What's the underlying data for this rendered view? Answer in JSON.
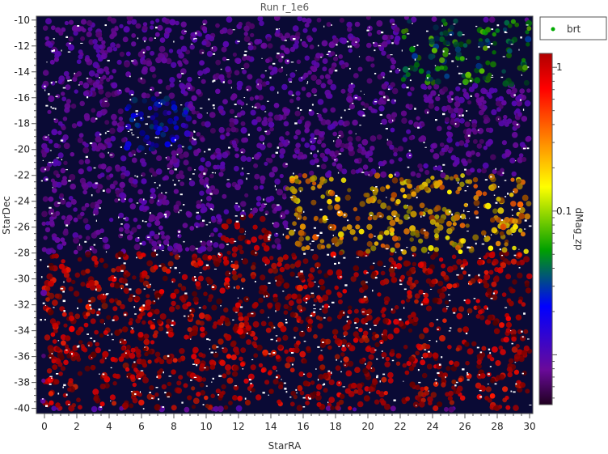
{
  "chart_data": {
    "type": "scatter",
    "title": "Run r_1e6",
    "xlabel": "StarRA",
    "ylabel": "StarDec",
    "xlim": [
      -0.5,
      30.2
    ],
    "ylim": [
      -40.4,
      -9.7
    ],
    "x_ticks": [
      "0",
      "2",
      "4",
      "6",
      "8",
      "10",
      "12",
      "14",
      "16",
      "18",
      "20",
      "22",
      "24",
      "26",
      "28",
      "30"
    ],
    "y_ticks": [
      "-10",
      "-12",
      "-14",
      "-16",
      "-18",
      "-20",
      "-22",
      "-24",
      "-26",
      "-28",
      "-30",
      "-32",
      "-34",
      "-36",
      "-38",
      "-40"
    ],
    "legend": {
      "label": "brt",
      "marker_color": "#00aa00",
      "placement": "top-right, outside plot"
    },
    "colorbar": {
      "label": "dMag_zp",
      "scale": "log",
      "range": [
        0.0045,
        1.25
      ],
      "tick_labels": [
        "1",
        "0.1"
      ],
      "tick_values": [
        1,
        0.1
      ],
      "colors": [
        "#200020",
        "#6a0a9a",
        "#0000ff",
        "#00a000",
        "#ffff00",
        "#ff8000",
        "#ff0000",
        "#b00000"
      ]
    },
    "background_color": "#0a0a35",
    "grid": false,
    "regions": [
      {
        "name": "red-orange band",
        "x_range": [
          0,
          30
        ],
        "y_range": [
          -40,
          -28
        ],
        "dMag_zp": 0.9
      },
      {
        "name": "olive band",
        "x_range": [
          15,
          30
        ],
        "y_range": [
          -28,
          -22
        ],
        "dMag_zp": 0.25
      },
      {
        "name": "green patch",
        "x_range": [
          22,
          30
        ],
        "y_range": [
          -15,
          -10
        ],
        "dMag_zp": 0.05
      },
      {
        "name": "blue patch",
        "x_range": [
          5,
          9
        ],
        "y_range": [
          -20,
          -16
        ],
        "dMag_zp": 0.02
      },
      {
        "name": "dark red patch",
        "x_range": [
          11,
          14
        ],
        "y_range": [
          -28,
          -25
        ],
        "dMag_zp": 1.1
      }
    ]
  }
}
